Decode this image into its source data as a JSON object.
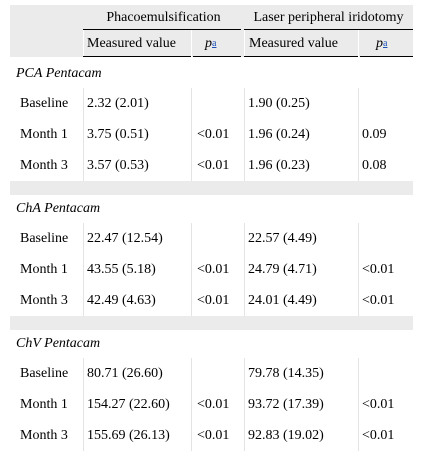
{
  "header": {
    "groups": [
      "Phacoemulsification",
      "Laser peripheral iridotomy"
    ],
    "col_measured": "Measured value",
    "col_p": "p",
    "col_p_sup": "a"
  },
  "sections": [
    {
      "label": "PCA Pentacam",
      "rows": [
        {
          "time": "Baseline",
          "phaco_value": "2.32 (2.01)",
          "phaco_p": "",
          "lpi_value": "1.90 (0.25)",
          "lpi_p": ""
        },
        {
          "time": "Month 1",
          "phaco_value": "3.75 (0.51)",
          "phaco_p": "<0.01",
          "lpi_value": "1.96 (0.24)",
          "lpi_p": "0.09"
        },
        {
          "time": "Month 3",
          "phaco_value": "3.57 (0.53)",
          "phaco_p": "<0.01",
          "lpi_value": "1.96 (0.23)",
          "lpi_p": "0.08"
        }
      ]
    },
    {
      "label": "ChA Pentacam",
      "rows": [
        {
          "time": "Baseline",
          "phaco_value": "22.47 (12.54)",
          "phaco_p": "",
          "lpi_value": "22.57 (4.49)",
          "lpi_p": ""
        },
        {
          "time": "Month 1",
          "phaco_value": "43.55 (5.18)",
          "phaco_p": "<0.01",
          "lpi_value": "24.79 (4.71)",
          "lpi_p": "<0.01"
        },
        {
          "time": "Month 3",
          "phaco_value": "42.49 (4.63)",
          "phaco_p": "<0.01",
          "lpi_value": "24.01 (4.49)",
          "lpi_p": "<0.01"
        }
      ]
    },
    {
      "label": "ChV Pentacam",
      "rows": [
        {
          "time": "Baseline",
          "phaco_value": "80.71 (26.60)",
          "phaco_p": "",
          "lpi_value": "79.78 (14.35)",
          "lpi_p": ""
        },
        {
          "time": "Month 1",
          "phaco_value": "154.27 (22.60)",
          "phaco_p": "<0.01",
          "lpi_value": "93.72 (17.39)",
          "lpi_p": "<0.01"
        },
        {
          "time": "Month 3",
          "phaco_value": "155.69 (26.13)",
          "phaco_p": "<0.01",
          "lpi_value": "92.83 (19.02)",
          "lpi_p": "<0.01"
        }
      ]
    }
  ]
}
